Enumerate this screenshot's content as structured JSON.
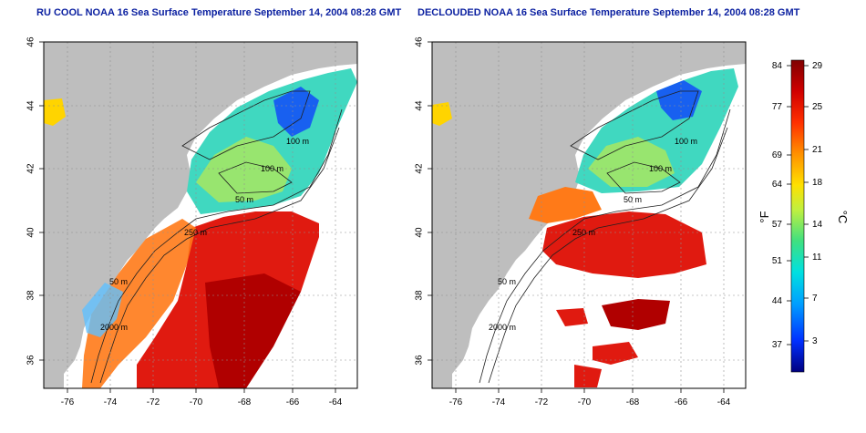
{
  "titles": {
    "left": "RU COOL NOAA 16 Sea Surface Temperature September 14, 2004 08:28 GMT",
    "right": "DECLOUDED NOAA 16 Sea Surface Temperature September 14, 2004 08:28 GMT"
  },
  "axes": {
    "x_ticks": [
      "-76",
      "-74",
      "-72",
      "-70",
      "-68",
      "-66",
      "-64"
    ],
    "y_ticks": [
      "36",
      "38",
      "40",
      "42",
      "44",
      "46"
    ]
  },
  "contour_labels": [
    "100 m",
    "100 m",
    "50 m",
    "250 m",
    "50 m",
    "2000 m"
  ],
  "colorbar": {
    "fahrenheit_ticks": [
      "84",
      "77",
      "69",
      "64",
      "57",
      "51",
      "44",
      "37"
    ],
    "celsius_ticks": [
      "29",
      "25",
      "21",
      "18",
      "14",
      "11",
      "7",
      "3"
    ],
    "unit_f": "°F",
    "unit_c": "°C",
    "colors": [
      "#000080",
      "#0030ff",
      "#00a0ff",
      "#00e0e0",
      "#40e080",
      "#c0f040",
      "#ffe000",
      "#ff9000",
      "#ff3000",
      "#d00000",
      "#800000"
    ]
  },
  "colors": {
    "land": "#bebebe",
    "title": "#0a1fa0",
    "cloud": "#ffffff"
  }
}
